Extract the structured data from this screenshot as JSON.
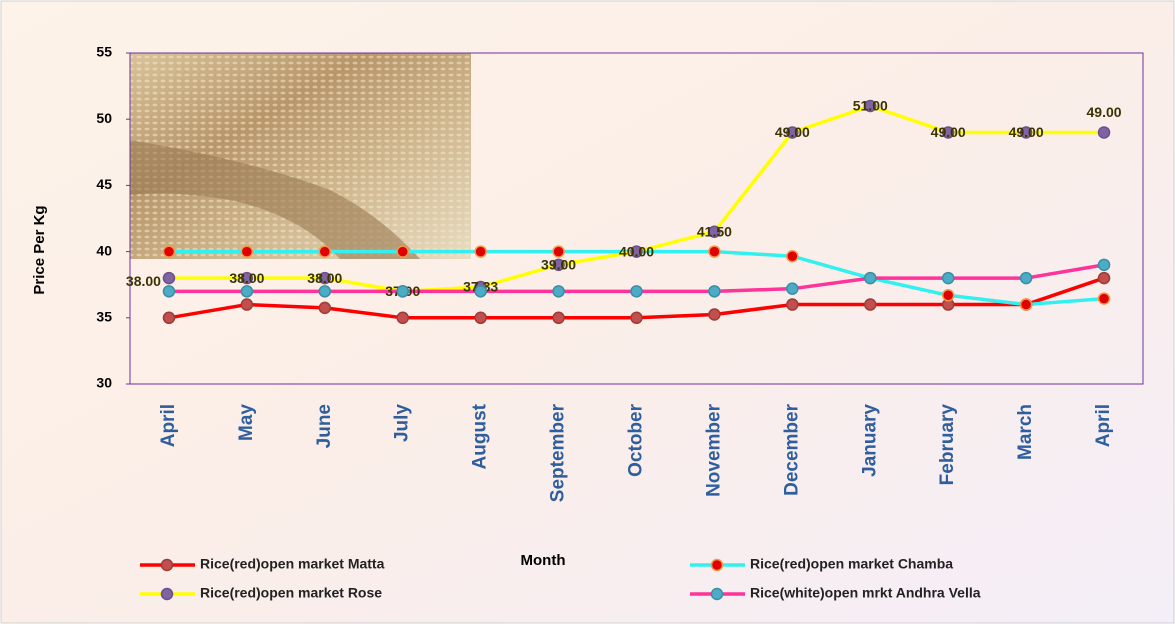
{
  "chart_data": {
    "type": "line",
    "y_label": "Price Per Kg",
    "x_label": "Month",
    "categories": [
      "April",
      "May",
      "June",
      "July",
      "August",
      "September",
      "October",
      "November",
      "December",
      "January",
      "February",
      "March",
      "April"
    ],
    "ylim": [
      30,
      55
    ],
    "yticks": [
      30,
      35,
      40,
      45,
      50,
      55
    ],
    "series": [
      {
        "name": "Rice(red)open market Matta",
        "color": "#ff0000",
        "marker_color": "#c0504d",
        "marker_edge": "#a03a37",
        "values": [
          35,
          36,
          35.75,
          35,
          35,
          35,
          35,
          35.25,
          36,
          36,
          36,
          36,
          38
        ]
      },
      {
        "name": "Rice(red)open market Chamba",
        "color": "#33f0f0",
        "marker_color": "#e00000",
        "marker_edge": "#f79646",
        "values": [
          40,
          40,
          40,
          40,
          40,
          40,
          40,
          40,
          39.65,
          38,
          36.7,
          36,
          36.45
        ]
      },
      {
        "name": "Rice(red)open market Rose",
        "color": "#ffff00",
        "marker_color": "#8064a2",
        "marker_edge": "#6a4f8c",
        "values": [
          38,
          38,
          38,
          37,
          37.33,
          39,
          40,
          41.5,
          49,
          51,
          49,
          49,
          49
        ],
        "value_labels": [
          "38.00",
          "38.00",
          "38.00",
          "37.00",
          "37.33",
          "39.00",
          "40.00",
          "41.50",
          "49.00",
          "51.00",
          "49.00",
          "49.00",
          "49.00"
        ]
      },
      {
        "name": "Rice(white)open mrkt Andhra Vella",
        "color": "#ff3399",
        "marker_color": "#4bacc6",
        "marker_edge": "#3a8fa6",
        "values": [
          37,
          37,
          37,
          37,
          37,
          37,
          37,
          37,
          37.2,
          38,
          38,
          38,
          39
        ]
      }
    ]
  }
}
